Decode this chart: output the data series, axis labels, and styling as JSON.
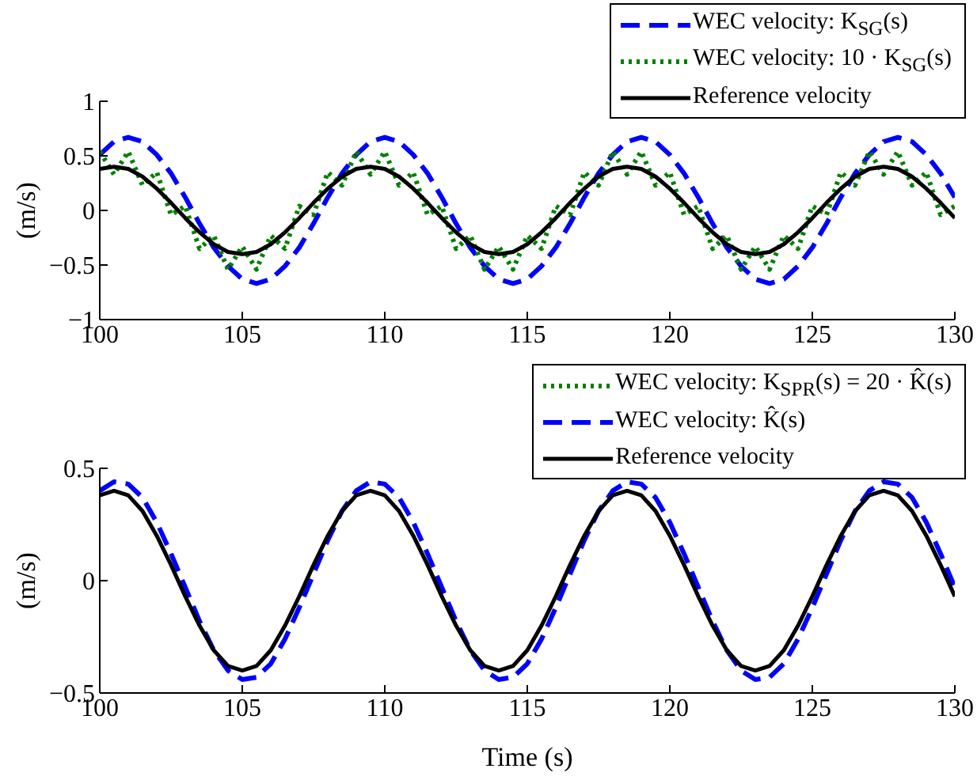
{
  "chart_data": [
    {
      "type": "line",
      "ylabel": "(m/s)",
      "legend": "top right",
      "xlim": [
        100,
        130
      ],
      "xticks": [
        100,
        105,
        110,
        115,
        120,
        125,
        130
      ],
      "ylim": [
        -1,
        1
      ],
      "yticks": [
        -1,
        -0.5,
        0,
        0.5,
        1
      ],
      "marker": "none",
      "x": [
        100,
        100.5,
        101,
        101.5,
        102,
        102.5,
        103,
        103.5,
        104,
        104.5,
        105,
        105.5,
        106,
        106.5,
        107,
        107.5,
        108,
        108.5,
        109,
        109.5,
        110,
        110.5,
        111,
        111.5,
        112,
        112.5,
        113,
        113.5,
        114,
        114.5,
        115,
        115.5,
        116,
        116.5,
        117,
        117.5,
        118,
        118.5,
        119,
        119.5,
        120,
        120.5,
        121,
        121.5,
        122,
        122.5,
        123,
        123.5,
        124,
        124.5,
        125,
        125.5,
        126,
        126.5,
        127,
        127.5,
        128,
        128.5,
        129,
        129.5,
        130
      ],
      "series": [
        {
          "name": "WEC velocity: K$_{SG}$(s)",
          "color": "#0000ff",
          "line_style": "dashed",
          "values": [
            0.51,
            0.63,
            0.67,
            0.63,
            0.51,
            0.34,
            0.12,
            -0.12,
            -0.34,
            -0.51,
            -0.63,
            -0.67,
            -0.63,
            -0.51,
            -0.34,
            -0.12,
            0.12,
            0.34,
            0.51,
            0.63,
            0.67,
            0.63,
            0.51,
            0.34,
            0.12,
            -0.12,
            -0.34,
            -0.51,
            -0.63,
            -0.67,
            -0.63,
            -0.51,
            -0.34,
            -0.12,
            0.12,
            0.34,
            0.51,
            0.63,
            0.67,
            0.63,
            0.51,
            0.34,
            0.12,
            -0.12,
            -0.34,
            -0.51,
            -0.63,
            -0.67,
            -0.63,
            -0.51,
            -0.34,
            -0.12,
            0.12,
            0.34,
            0.51,
            0.63,
            0.67,
            0.63,
            0.51,
            0.34,
            0.12
          ]
        },
        {
          "name": "WEC velocity: 10 · K$_{SG}$(s)",
          "color": "#008000",
          "line_style": "dotted",
          "values": [
            0.54,
            0.33,
            0.54,
            0.23,
            0.35,
            -0.04,
            0.04,
            -0.35,
            -0.23,
            -0.54,
            -0.33,
            -0.54,
            -0.23,
            -0.35,
            0.04,
            -0.04,
            0.35,
            0.23,
            0.54,
            0.33,
            0.54,
            0.23,
            0.35,
            -0.04,
            0.04,
            -0.35,
            -0.23,
            -0.54,
            -0.33,
            -0.54,
            -0.23,
            -0.35,
            0.04,
            -0.04,
            0.35,
            0.23,
            0.54,
            0.33,
            0.54,
            0.23,
            0.35,
            -0.04,
            0.04,
            -0.35,
            -0.23,
            -0.54,
            -0.33,
            -0.54,
            -0.23,
            -0.35,
            0.04,
            -0.04,
            0.35,
            0.23,
            0.54,
            0.33,
            0.54,
            0.23,
            0.35,
            -0.04,
            0.04
          ]
        },
        {
          "name": "Reference velocity",
          "color": "#000000",
          "line_style": "solid",
          "values": [
            0.38,
            0.4,
            0.38,
            0.31,
            0.2,
            0.07,
            -0.07,
            -0.2,
            -0.31,
            -0.38,
            -0.4,
            -0.38,
            -0.31,
            -0.2,
            -0.07,
            0.07,
            0.2,
            0.31,
            0.38,
            0.4,
            0.38,
            0.31,
            0.2,
            0.07,
            -0.07,
            -0.2,
            -0.31,
            -0.38,
            -0.4,
            -0.38,
            -0.31,
            -0.2,
            -0.07,
            0.07,
            0.2,
            0.31,
            0.38,
            0.4,
            0.38,
            0.31,
            0.2,
            0.07,
            -0.07,
            -0.2,
            -0.31,
            -0.38,
            -0.4,
            -0.38,
            -0.31,
            -0.2,
            -0.07,
            0.07,
            0.2,
            0.31,
            0.38,
            0.4,
            0.38,
            0.31,
            0.2,
            0.07,
            -0.07
          ]
        }
      ]
    },
    {
      "type": "line",
      "xlabel": "Time (s)",
      "ylabel": "(m/s)",
      "legend": "top right",
      "xlim": [
        100,
        130
      ],
      "xticks": [
        100,
        105,
        110,
        115,
        120,
        125,
        130
      ],
      "ylim": [
        -0.5,
        0.5
      ],
      "yticks": [
        -0.5,
        0,
        0.5
      ],
      "marker": "none",
      "x": [
        100,
        100.5,
        101,
        101.5,
        102,
        102.5,
        103,
        103.5,
        104,
        104.5,
        105,
        105.5,
        106,
        106.5,
        107,
        107.5,
        108,
        108.5,
        109,
        109.5,
        110,
        110.5,
        111,
        111.5,
        112,
        112.5,
        113,
        113.5,
        114,
        114.5,
        115,
        115.5,
        116,
        116.5,
        117,
        117.5,
        118,
        118.5,
        119,
        119.5,
        120,
        120.5,
        121,
        121.5,
        122,
        122.5,
        123,
        123.5,
        124,
        124.5,
        125,
        125.5,
        126,
        126.5,
        127,
        127.5,
        128,
        128.5,
        129,
        129.5,
        130
      ],
      "series": [
        {
          "name": "WEC velocity: K$_{SPR}$(s) = 20 · K̂(s)",
          "color": "#008000",
          "line_style": "dotted",
          "values": [
            null,
            null,
            null,
            null,
            null,
            null,
            null,
            null,
            null,
            null,
            null,
            null,
            null,
            null,
            null,
            null,
            null,
            null,
            null,
            null,
            null,
            null,
            null,
            null,
            null,
            null,
            null,
            null,
            null,
            null,
            null,
            null,
            null,
            null,
            null,
            null,
            null,
            null,
            null,
            null,
            null,
            null,
            null,
            null,
            null,
            null,
            null,
            null,
            null,
            null,
            null,
            null,
            null,
            null,
            null,
            null,
            null,
            null,
            null,
            null,
            null
          ]
        },
        {
          "name": "WEC velocity: K̂(s)",
          "color": "#0000ff",
          "line_style": "dashed",
          "values": [
            0.4,
            0.44,
            0.43,
            0.37,
            0.26,
            0.12,
            -0.03,
            -0.18,
            -0.31,
            -0.4,
            -0.44,
            -0.43,
            -0.37,
            -0.26,
            -0.12,
            0.03,
            0.18,
            0.31,
            0.4,
            0.44,
            0.43,
            0.37,
            0.26,
            0.12,
            -0.03,
            -0.18,
            -0.31,
            -0.4,
            -0.44,
            -0.43,
            -0.37,
            -0.26,
            -0.12,
            0.03,
            0.18,
            0.31,
            0.4,
            0.44,
            0.43,
            0.37,
            0.26,
            0.12,
            -0.03,
            -0.18,
            -0.31,
            -0.4,
            -0.44,
            -0.43,
            -0.37,
            -0.26,
            -0.12,
            0.03,
            0.18,
            0.31,
            0.4,
            0.44,
            0.43,
            0.37,
            0.26,
            0.12,
            -0.03
          ]
        },
        {
          "name": "Reference velocity",
          "color": "#000000",
          "line_style": "solid",
          "values": [
            0.38,
            0.4,
            0.38,
            0.31,
            0.2,
            0.07,
            -0.07,
            -0.2,
            -0.31,
            -0.38,
            -0.4,
            -0.38,
            -0.31,
            -0.2,
            -0.07,
            0.07,
            0.2,
            0.31,
            0.38,
            0.4,
            0.38,
            0.31,
            0.2,
            0.07,
            -0.07,
            -0.2,
            -0.31,
            -0.38,
            -0.4,
            -0.38,
            -0.31,
            -0.2,
            -0.07,
            0.07,
            0.2,
            0.31,
            0.38,
            0.4,
            0.38,
            0.31,
            0.2,
            0.07,
            -0.07,
            -0.2,
            -0.31,
            -0.38,
            -0.4,
            -0.38,
            -0.31,
            -0.2,
            -0.07,
            0.07,
            0.2,
            0.31,
            0.38,
            0.4,
            0.38,
            0.31,
            0.2,
            0.07,
            -0.07
          ]
        }
      ]
    }
  ]
}
